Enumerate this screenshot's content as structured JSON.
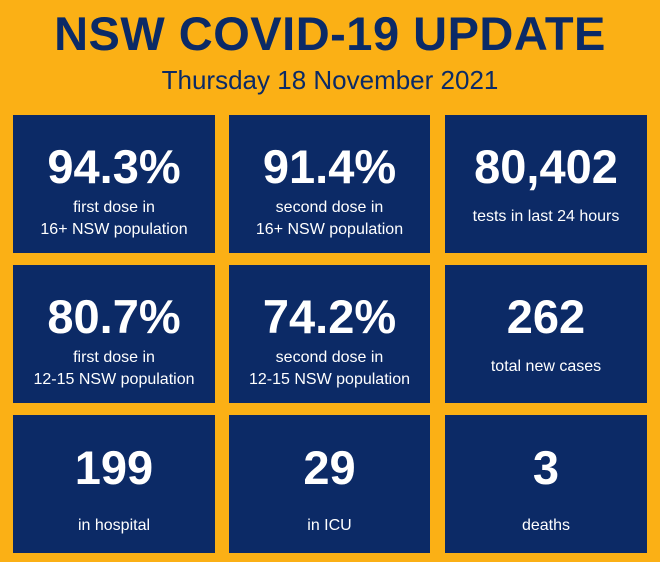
{
  "header": {
    "title": "NSW COVID-19 UPDATE",
    "date": "Thursday 18 November 2021"
  },
  "stats": [
    {
      "value": "94.3%",
      "caption_lines": [
        "first dose in",
        "16+ NSW population"
      ]
    },
    {
      "value": "91.4%",
      "caption_lines": [
        "second dose in",
        "16+ NSW population"
      ]
    },
    {
      "value": "80,402",
      "caption_lines": [
        "tests in last 24 hours"
      ]
    },
    {
      "value": "80.7%",
      "caption_lines": [
        "first dose in",
        "12-15 NSW population"
      ]
    },
    {
      "value": "74.2%",
      "caption_lines": [
        "second dose in",
        "12-15 NSW population"
      ]
    },
    {
      "value": "262",
      "caption_lines": [
        "total new cases"
      ]
    },
    {
      "value": "199",
      "caption_lines": [
        "in hospital"
      ]
    },
    {
      "value": "29",
      "caption_lines": [
        "in ICU"
      ]
    },
    {
      "value": "3",
      "caption_lines": [
        "deaths"
      ]
    }
  ],
  "colors": {
    "background": "#fbb015",
    "card": "#0c2a66",
    "title_text": "#0b2a66",
    "card_text": "#ffffff"
  }
}
